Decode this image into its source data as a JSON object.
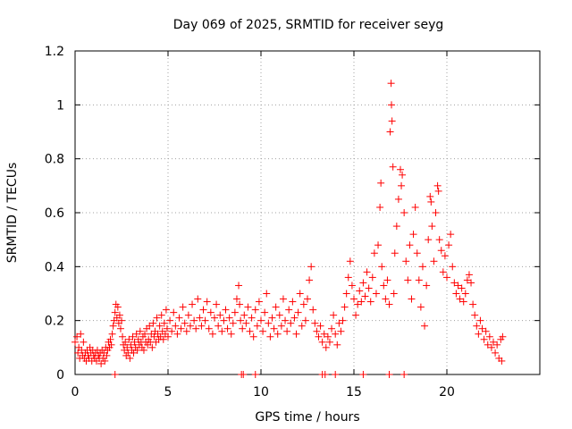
{
  "chart_data": {
    "type": "scatter",
    "title": "Day 069 of 2025, SRMTID for receiver seyg",
    "xlabel": "GPS time / hours",
    "ylabel": "SRMTID / TECUs",
    "xlim": [
      0,
      25
    ],
    "ylim": [
      0,
      1.2
    ],
    "xticks": [
      0,
      5,
      10,
      15,
      20
    ],
    "xtick_labels": [
      "0",
      "5",
      "10",
      "15",
      "20"
    ],
    "yticks": [
      0,
      0.2,
      0.4,
      0.6,
      0.8,
      1.0,
      1.2
    ],
    "ytick_labels": [
      "0",
      "0.2",
      "0.4",
      "0.6",
      "0.8",
      "1",
      "1.2"
    ],
    "grid": true,
    "marker": "plus",
    "color": "#ff0000",
    "series": [
      {
        "name": "SRMTID",
        "points": [
          [
            0.0,
            0.12
          ],
          [
            0.1,
            0.14
          ],
          [
            0.15,
            0.08
          ],
          [
            0.2,
            0.1
          ],
          [
            0.25,
            0.06
          ],
          [
            0.3,
            0.15
          ],
          [
            0.35,
            0.09
          ],
          [
            0.4,
            0.07
          ],
          [
            0.45,
            0.12
          ],
          [
            0.5,
            0.06
          ],
          [
            0.55,
            0.08
          ],
          [
            0.6,
            0.05
          ],
          [
            0.65,
            0.09
          ],
          [
            0.7,
            0.07
          ],
          [
            0.75,
            0.06
          ],
          [
            0.8,
            0.1
          ],
          [
            0.85,
            0.08
          ],
          [
            0.9,
            0.05
          ],
          [
            0.95,
            0.09
          ],
          [
            1.0,
            0.07
          ],
          [
            1.05,
            0.06
          ],
          [
            1.1,
            0.08
          ],
          [
            1.15,
            0.05
          ],
          [
            1.2,
            0.09
          ],
          [
            1.25,
            0.07
          ],
          [
            1.3,
            0.06
          ],
          [
            1.35,
            0.08
          ],
          [
            1.4,
            0.04
          ],
          [
            1.45,
            0.09
          ],
          [
            1.5,
            0.06
          ],
          [
            1.55,
            0.08
          ],
          [
            1.6,
            0.05
          ],
          [
            1.65,
            0.1
          ],
          [
            1.7,
            0.07
          ],
          [
            1.75,
            0.09
          ],
          [
            1.8,
            0.12
          ],
          [
            1.85,
            0.1
          ],
          [
            1.9,
            0.13
          ],
          [
            1.95,
            0.11
          ],
          [
            2.0,
            0.15
          ],
          [
            2.05,
            0.18
          ],
          [
            2.1,
            0.2
          ],
          [
            2.15,
            0.23
          ],
          [
            2.2,
            0.26
          ],
          [
            2.25,
            0.21
          ],
          [
            2.3,
            0.25
          ],
          [
            2.35,
            0.19
          ],
          [
            2.4,
            0.22
          ],
          [
            2.45,
            0.17
          ],
          [
            2.5,
            0.2
          ],
          [
            2.55,
            0.14
          ],
          [
            2.6,
            0.11
          ],
          [
            2.65,
            0.09
          ],
          [
            2.7,
            0.12
          ],
          [
            2.75,
            0.07
          ],
          [
            2.8,
            0.1
          ],
          [
            2.85,
            0.08
          ],
          [
            2.9,
            0.13
          ],
          [
            2.95,
            0.06
          ],
          [
            3.0,
            0.11
          ],
          [
            3.05,
            0.09
          ],
          [
            3.1,
            0.14
          ],
          [
            3.15,
            0.08
          ],
          [
            3.2,
            0.12
          ],
          [
            3.25,
            0.1
          ],
          [
            3.3,
            0.15
          ],
          [
            3.35,
            0.09
          ],
          [
            3.4,
            0.13
          ],
          [
            3.45,
            0.11
          ],
          [
            3.5,
            0.16
          ],
          [
            3.55,
            0.12
          ],
          [
            3.6,
            0.1
          ],
          [
            3.65,
            0.14
          ],
          [
            3.7,
            0.09
          ],
          [
            3.75,
            0.15
          ],
          [
            3.8,
            0.12
          ],
          [
            3.85,
            0.17
          ],
          [
            3.9,
            0.11
          ],
          [
            3.95,
            0.13
          ],
          [
            4.0,
            0.18
          ],
          [
            4.05,
            0.12
          ],
          [
            4.1,
            0.15
          ],
          [
            4.15,
            0.1
          ],
          [
            4.2,
            0.19
          ],
          [
            4.25,
            0.14
          ],
          [
            4.3,
            0.16
          ],
          [
            4.35,
            0.12
          ],
          [
            4.4,
            0.21
          ],
          [
            4.45,
            0.15
          ],
          [
            4.5,
            0.13
          ],
          [
            4.55,
            0.18
          ],
          [
            4.6,
            0.14
          ],
          [
            4.65,
            0.22
          ],
          [
            4.7,
            0.16
          ],
          [
            4.75,
            0.13
          ],
          [
            4.8,
            0.19
          ],
          [
            4.85,
            0.15
          ],
          [
            4.9,
            0.24
          ],
          [
            4.95,
            0.17
          ],
          [
            5.0,
            0.14
          ],
          [
            5.1,
            0.2
          ],
          [
            5.2,
            0.16
          ],
          [
            5.3,
            0.23
          ],
          [
            5.4,
            0.18
          ],
          [
            5.5,
            0.15
          ],
          [
            5.6,
            0.21
          ],
          [
            5.7,
            0.17
          ],
          [
            5.8,
            0.25
          ],
          [
            5.9,
            0.19
          ],
          [
            6.0,
            0.16
          ],
          [
            6.1,
            0.22
          ],
          [
            6.2,
            0.18
          ],
          [
            6.3,
            0.26
          ],
          [
            6.4,
            0.2
          ],
          [
            6.5,
            0.17
          ],
          [
            6.6,
            0.28
          ],
          [
            6.7,
            0.21
          ],
          [
            6.8,
            0.18
          ],
          [
            6.9,
            0.24
          ],
          [
            7.0,
            0.2
          ],
          [
            7.1,
            0.27
          ],
          [
            7.2,
            0.17
          ],
          [
            7.3,
            0.23
          ],
          [
            7.4,
            0.15
          ],
          [
            7.5,
            0.21
          ],
          [
            7.6,
            0.26
          ],
          [
            7.7,
            0.18
          ],
          [
            7.8,
            0.22
          ],
          [
            7.9,
            0.16
          ],
          [
            8.0,
            0.2
          ],
          [
            8.1,
            0.24
          ],
          [
            8.2,
            0.17
          ],
          [
            8.3,
            0.21
          ],
          [
            8.4,
            0.15
          ],
          [
            8.5,
            0.19
          ],
          [
            8.6,
            0.23
          ],
          [
            8.7,
            0.28
          ],
          [
            8.8,
            0.33
          ],
          [
            8.85,
            0.26
          ],
          [
            8.9,
            0.2
          ],
          [
            9.0,
            0.17
          ],
          [
            9.1,
            0.22
          ],
          [
            9.2,
            0.19
          ],
          [
            9.3,
            0.25
          ],
          [
            9.4,
            0.16
          ],
          [
            9.5,
            0.21
          ],
          [
            9.6,
            0.14
          ],
          [
            9.7,
            0.24
          ],
          [
            9.8,
            0.18
          ],
          [
            9.9,
            0.27
          ],
          [
            10.0,
            0.2
          ],
          [
            10.1,
            0.16
          ],
          [
            10.2,
            0.23
          ],
          [
            10.3,
            0.3
          ],
          [
            10.4,
            0.19
          ],
          [
            10.5,
            0.14
          ],
          [
            10.6,
            0.21
          ],
          [
            10.7,
            0.17
          ],
          [
            10.8,
            0.25
          ],
          [
            10.9,
            0.15
          ],
          [
            11.0,
            0.22
          ],
          [
            11.1,
            0.18
          ],
          [
            11.2,
            0.28
          ],
          [
            11.3,
            0.2
          ],
          [
            11.4,
            0.16
          ],
          [
            11.5,
            0.24
          ],
          [
            11.6,
            0.19
          ],
          [
            11.7,
            0.27
          ],
          [
            11.8,
            0.21
          ],
          [
            11.9,
            0.15
          ],
          [
            12.0,
            0.23
          ],
          [
            12.1,
            0.3
          ],
          [
            12.2,
            0.18
          ],
          [
            12.3,
            0.26
          ],
          [
            12.4,
            0.2
          ],
          [
            12.5,
            0.28
          ],
          [
            12.6,
            0.35
          ],
          [
            12.7,
            0.4
          ],
          [
            12.8,
            0.24
          ],
          [
            12.9,
            0.19
          ],
          [
            13.0,
            0.16
          ],
          [
            13.1,
            0.14
          ],
          [
            13.2,
            0.18
          ],
          [
            13.3,
            0.12
          ],
          [
            13.4,
            0.15
          ],
          [
            13.5,
            0.1
          ],
          [
            13.6,
            0.14
          ],
          [
            13.7,
            0.12
          ],
          [
            13.8,
            0.17
          ],
          [
            13.9,
            0.22
          ],
          [
            14.0,
            0.15
          ],
          [
            14.1,
            0.11
          ],
          [
            14.2,
            0.19
          ],
          [
            14.3,
            0.16
          ],
          [
            14.4,
            0.2
          ],
          [
            14.5,
            0.25
          ],
          [
            14.6,
            0.3
          ],
          [
            14.7,
            0.36
          ],
          [
            14.8,
            0.42
          ],
          [
            14.9,
            0.33
          ],
          [
            15.0,
            0.28
          ],
          [
            15.1,
            0.22
          ],
          [
            15.2,
            0.26
          ],
          [
            15.3,
            0.31
          ],
          [
            15.4,
            0.27
          ],
          [
            15.5,
            0.34
          ],
          [
            15.6,
            0.29
          ],
          [
            15.7,
            0.38
          ],
          [
            15.8,
            0.32
          ],
          [
            15.9,
            0.27
          ],
          [
            16.0,
            0.36
          ],
          [
            16.1,
            0.45
          ],
          [
            16.2,
            0.3
          ],
          [
            16.3,
            0.48
          ],
          [
            16.4,
            0.62
          ],
          [
            16.45,
            0.71
          ],
          [
            16.5,
            0.4
          ],
          [
            16.6,
            0.33
          ],
          [
            16.7,
            0.28
          ],
          [
            16.8,
            0.35
          ],
          [
            16.9,
            0.26
          ],
          [
            16.95,
            0.9
          ],
          [
            17.0,
            1.08
          ],
          [
            17.02,
            1.0
          ],
          [
            17.05,
            0.94
          ],
          [
            17.1,
            0.77
          ],
          [
            17.15,
            0.3
          ],
          [
            17.2,
            0.45
          ],
          [
            17.3,
            0.55
          ],
          [
            17.4,
            0.65
          ],
          [
            17.5,
            0.76
          ],
          [
            17.55,
            0.7
          ],
          [
            17.6,
            0.74
          ],
          [
            17.7,
            0.6
          ],
          [
            17.8,
            0.42
          ],
          [
            17.9,
            0.35
          ],
          [
            18.0,
            0.48
          ],
          [
            18.1,
            0.28
          ],
          [
            18.2,
            0.52
          ],
          [
            18.3,
            0.62
          ],
          [
            18.4,
            0.45
          ],
          [
            18.5,
            0.35
          ],
          [
            18.6,
            0.25
          ],
          [
            18.7,
            0.4
          ],
          [
            18.8,
            0.18
          ],
          [
            18.9,
            0.33
          ],
          [
            19.0,
            0.5
          ],
          [
            19.1,
            0.66
          ],
          [
            19.15,
            0.64
          ],
          [
            19.2,
            0.55
          ],
          [
            19.3,
            0.42
          ],
          [
            19.4,
            0.6
          ],
          [
            19.5,
            0.7
          ],
          [
            19.55,
            0.68
          ],
          [
            19.6,
            0.5
          ],
          [
            19.7,
            0.46
          ],
          [
            19.8,
            0.38
          ],
          [
            19.9,
            0.44
          ],
          [
            20.0,
            0.36
          ],
          [
            20.1,
            0.48
          ],
          [
            20.2,
            0.52
          ],
          [
            20.3,
            0.4
          ],
          [
            20.4,
            0.34
          ],
          [
            20.5,
            0.3
          ],
          [
            20.6,
            0.33
          ],
          [
            20.7,
            0.28
          ],
          [
            20.8,
            0.32
          ],
          [
            20.9,
            0.27
          ],
          [
            21.0,
            0.3
          ],
          [
            21.1,
            0.35
          ],
          [
            21.2,
            0.37
          ],
          [
            21.3,
            0.34
          ],
          [
            21.4,
            0.26
          ],
          [
            21.5,
            0.22
          ],
          [
            21.6,
            0.18
          ],
          [
            21.7,
            0.15
          ],
          [
            21.8,
            0.2
          ],
          [
            21.9,
            0.17
          ],
          [
            22.0,
            0.13
          ],
          [
            22.1,
            0.16
          ],
          [
            22.2,
            0.11
          ],
          [
            22.3,
            0.14
          ],
          [
            22.4,
            0.1
          ],
          [
            22.5,
            0.12
          ],
          [
            22.6,
            0.08
          ],
          [
            22.7,
            0.11
          ],
          [
            22.8,
            0.06
          ],
          [
            22.9,
            0.13
          ],
          [
            22.95,
            0.05
          ],
          [
            23.0,
            0.14
          ],
          [
            8.95,
            0.0
          ],
          [
            9.05,
            0.0
          ],
          [
            9.7,
            0.0
          ],
          [
            13.3,
            0.0
          ],
          [
            13.45,
            0.0
          ],
          [
            14.0,
            0.0
          ],
          [
            15.5,
            0.0
          ],
          [
            16.9,
            0.0
          ],
          [
            17.7,
            0.0
          ],
          [
            2.15,
            0.0
          ]
        ]
      }
    ]
  }
}
